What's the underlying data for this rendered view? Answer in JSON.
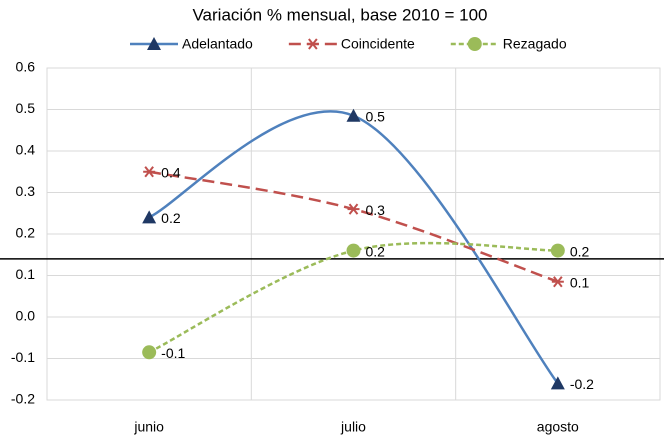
{
  "chart_data": {
    "type": "line",
    "title": "Variación % mensual, base 2010 = 100",
    "categories": [
      "junio",
      "julio",
      "agosto"
    ],
    "series": [
      {
        "name": "Adelantado",
        "color": "#4f81bd",
        "marker_color": "#1f3864",
        "marker": "triangle",
        "dash": "solid",
        "values": [
          0.24,
          0.485,
          -0.16
        ],
        "value_labels": [
          "0.2",
          "0.5",
          "-0.2"
        ]
      },
      {
        "name": "Coincidente",
        "color": "#c0504d",
        "marker_color": "#c0504d",
        "marker": "asterisk",
        "dash": "long",
        "values": [
          0.35,
          0.26,
          0.085
        ],
        "value_labels": [
          "0.4",
          "0.3",
          "0.1"
        ]
      },
      {
        "name": "Rezagado",
        "color": "#9bbb59",
        "marker_color": "#9bbb59",
        "marker": "circle",
        "dash": "short",
        "values": [
          -0.085,
          0.16,
          0.16
        ],
        "value_labels": [
          "-0.1",
          "0.2",
          "0.2"
        ]
      }
    ],
    "reference_line": 0.14,
    "ylim": [
      -0.2,
      0.6
    ],
    "yticks": [
      -0.2,
      -0.1,
      {
        "value": 0,
        "label": "0.0"
      },
      0.1,
      0.2,
      0.3,
      0.4,
      0.5,
      0.6
    ],
    "grid": true,
    "smooth": true,
    "legend": "top"
  }
}
